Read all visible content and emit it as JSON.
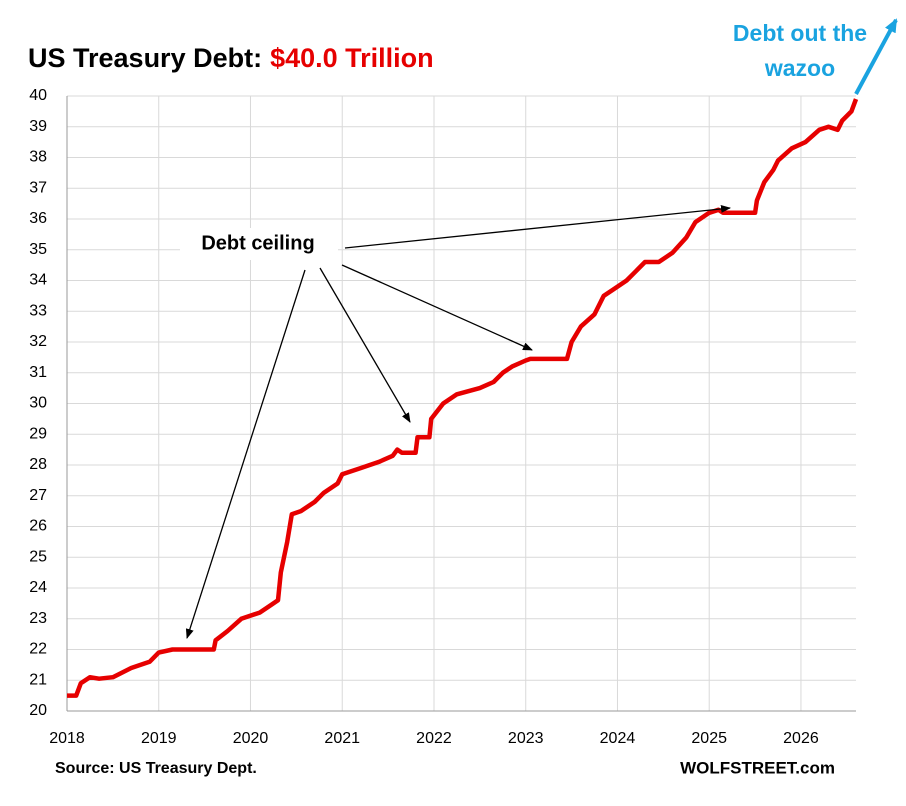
{
  "chart_data": {
    "type": "line",
    "title": "US Treasury Debt:",
    "title_highlight": "$40.0 Trillion",
    "annotations": [
      "Debt ceiling",
      "Debt out the",
      "wazoo"
    ],
    "source": "Source: US Treasury Dept.",
    "credit": "WOLFSTREET.com",
    "xlim": [
      2018,
      2026.6
    ],
    "xticks": [
      2018,
      2019,
      2020,
      2021,
      2022,
      2023,
      2024,
      2025,
      2026
    ],
    "ylim": [
      20,
      40
    ],
    "yticks": [
      20,
      21,
      22,
      23,
      24,
      25,
      26,
      27,
      28,
      29,
      30,
      31,
      32,
      33,
      34,
      35,
      36,
      37,
      38,
      39,
      40
    ],
    "grid": true,
    "series": [
      {
        "name": "US Treasury Debt",
        "color": "#e60000",
        "x": [
          2018.0,
          2018.1,
          2018.15,
          2018.25,
          2018.35,
          2018.5,
          2018.7,
          2018.9,
          2019.0,
          2019.15,
          2019.2,
          2019.6,
          2019.62,
          2019.75,
          2019.9,
          2020.1,
          2020.2,
          2020.3,
          2020.33,
          2020.4,
          2020.45,
          2020.55,
          2020.7,
          2020.8,
          2020.95,
          2021.0,
          2021.2,
          2021.4,
          2021.55,
          2021.6,
          2021.65,
          2021.8,
          2021.82,
          2021.95,
          2021.97,
          2022.1,
          2022.25,
          2022.5,
          2022.65,
          2022.75,
          2022.85,
          2023.0,
          2023.05,
          2023.45,
          2023.5,
          2023.6,
          2023.75,
          2023.85,
          2023.95,
          2024.1,
          2024.2,
          2024.3,
          2024.45,
          2024.6,
          2024.75,
          2024.85,
          2025.0,
          2025.1,
          2025.15,
          2025.5,
          2025.52,
          2025.6,
          2025.7,
          2025.75,
          2025.9,
          2026.05,
          2026.2,
          2026.3,
          2026.4,
          2026.45,
          2026.55,
          2026.6
        ],
        "values": [
          20.5,
          20.5,
          20.9,
          21.1,
          21.05,
          21.1,
          21.4,
          21.6,
          21.9,
          22.0,
          22.0,
          22.0,
          22.3,
          22.6,
          23.0,
          23.2,
          23.4,
          23.6,
          24.5,
          25.5,
          26.4,
          26.5,
          26.8,
          27.1,
          27.4,
          27.7,
          27.9,
          28.1,
          28.3,
          28.5,
          28.4,
          28.4,
          28.9,
          28.9,
          29.5,
          30.0,
          30.3,
          30.5,
          30.7,
          31.0,
          31.2,
          31.4,
          31.45,
          31.45,
          32.0,
          32.5,
          32.9,
          33.5,
          33.7,
          34.0,
          34.3,
          34.6,
          34.6,
          34.9,
          35.4,
          35.9,
          36.2,
          36.3,
          36.2,
          36.2,
          36.6,
          37.2,
          37.6,
          37.9,
          38.3,
          38.5,
          38.9,
          39.0,
          38.9,
          39.2,
          39.5,
          39.9
        ]
      }
    ]
  }
}
